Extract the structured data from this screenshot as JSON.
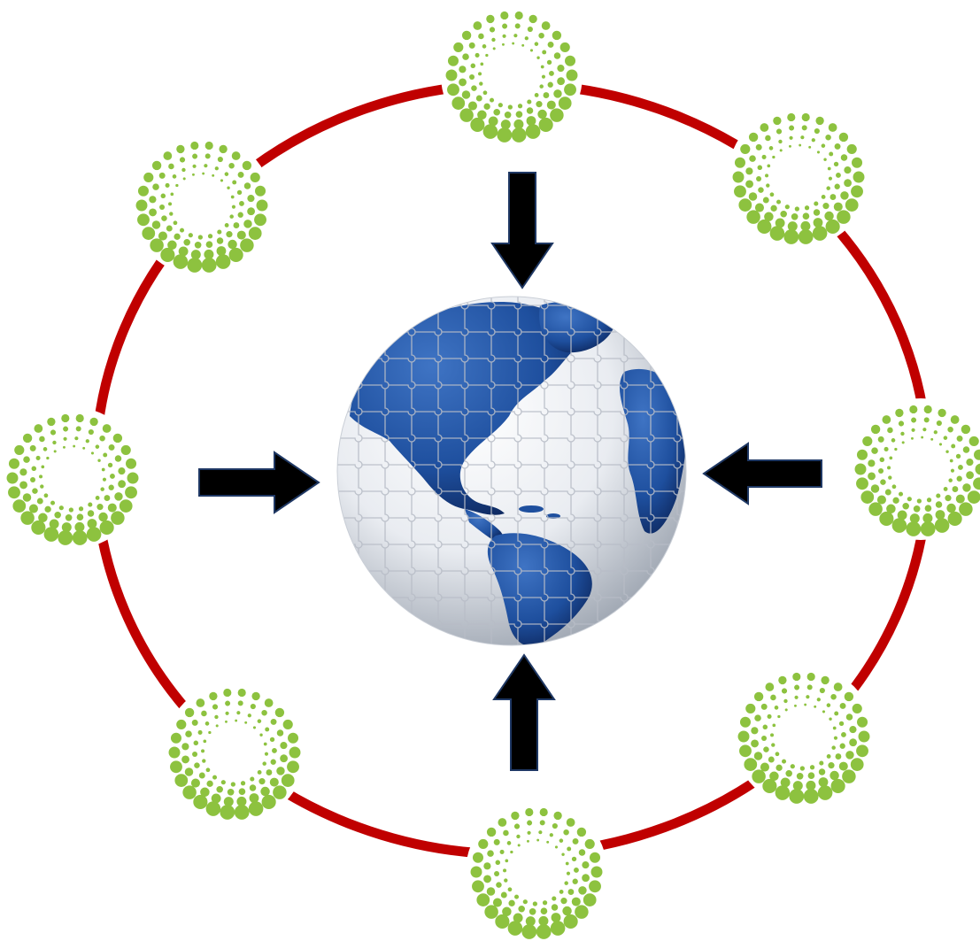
{
  "colors": {
    "ring": "#c00000",
    "node": "#8dc23f",
    "arrow_fill": "#000000",
    "arrow_stroke": "#1f3864",
    "ocean": "#f2f4f7",
    "land": "#1e4f9e",
    "land_dark": "#0f2f6b",
    "puzzle_line": "#b7bcc6"
  },
  "nodes": [
    {
      "id": "top"
    },
    {
      "id": "top-right"
    },
    {
      "id": "right"
    },
    {
      "id": "bottom-right"
    },
    {
      "id": "bottom"
    },
    {
      "id": "bottom-left"
    },
    {
      "id": "left"
    },
    {
      "id": "top-left"
    }
  ],
  "arrows": [
    {
      "id": "top",
      "direction": "down"
    },
    {
      "id": "right",
      "direction": "left"
    },
    {
      "id": "bottom",
      "direction": "up"
    },
    {
      "id": "left",
      "direction": "right"
    }
  ],
  "center": {
    "icon": "globe-puzzle-icon"
  }
}
